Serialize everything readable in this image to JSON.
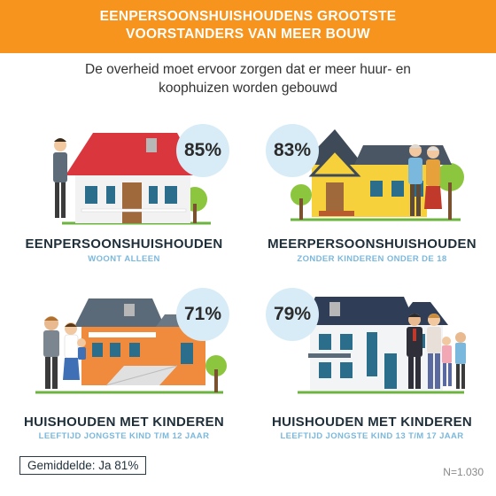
{
  "header": {
    "line1": "EENPERSOONSHUISHOUDENS GROOTSTE",
    "line2": "VOORSTANDERS VAN MEER BOUW"
  },
  "subtitle": {
    "line1": "De overheid moet ervoor zorgen dat er meer huur- en",
    "line2": "koophuizen worden gebouwd"
  },
  "panels": [
    {
      "percent": "85%",
      "label": "EENPERSOONSHUISHOUDEN",
      "sub": "WOONT ALLEEN"
    },
    {
      "percent": "83%",
      "label": "MEERPERSOONSHUISHOUDEN",
      "sub": "ZONDER KINDEREN ONDER DE 18"
    },
    {
      "percent": "71%",
      "label": "HUISHOUDEN MET KINDEREN",
      "sub": "LEEFTIJD JONGSTE KIND T/M 12 JAAR"
    },
    {
      "percent": "79%",
      "label": "HUISHOUDEN MET KINDEREN",
      "sub": "LEEFTIJD JONGSTE KIND 13 T/M 17 JAAR"
    }
  ],
  "footer": {
    "average": "Gemiddelde: Ja 81%",
    "n": "N=1.030"
  },
  "colors": {
    "header": "#f7941d",
    "badge": "#d7ecf7",
    "sub_label": "#7ab8dd"
  }
}
